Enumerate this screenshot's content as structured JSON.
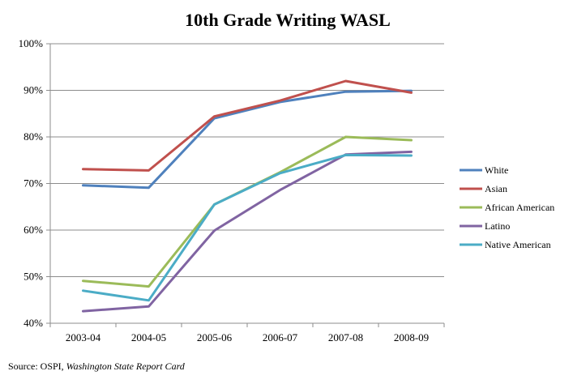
{
  "chart_data": {
    "type": "line",
    "title": "10th Grade Writing WASL",
    "categories": [
      "2003-04",
      "2004-05",
      "2005-06",
      "2006-07",
      "2007-08",
      "2008-09"
    ],
    "y_ticks": [
      "40%",
      "50%",
      "60%",
      "70%",
      "80%",
      "90%",
      "100%"
    ],
    "ylim": [
      40,
      100
    ],
    "grid": true,
    "legend_position": "right",
    "series": [
      {
        "name": "White",
        "color": "#4F81BD",
        "values": [
          69.6,
          69.1,
          84.0,
          87.5,
          89.7,
          89.9
        ]
      },
      {
        "name": "Asian",
        "color": "#C0504D",
        "values": [
          73.1,
          72.8,
          84.4,
          87.8,
          92.0,
          89.5
        ]
      },
      {
        "name": "African American",
        "color": "#9BBB59",
        "values": [
          49.1,
          47.9,
          65.5,
          72.4,
          80.0,
          79.3
        ]
      },
      {
        "name": "Latino",
        "color": "#8064A2",
        "values": [
          42.6,
          43.6,
          59.9,
          68.6,
          76.2,
          76.8
        ]
      },
      {
        "name": "Native American",
        "color": "#4BACC6",
        "values": [
          47.0,
          44.9,
          65.5,
          72.2,
          76.1,
          76.0
        ]
      }
    ]
  },
  "source": {
    "prefix": "Source: OSPI,",
    "italic": "Washington State Report Card"
  }
}
